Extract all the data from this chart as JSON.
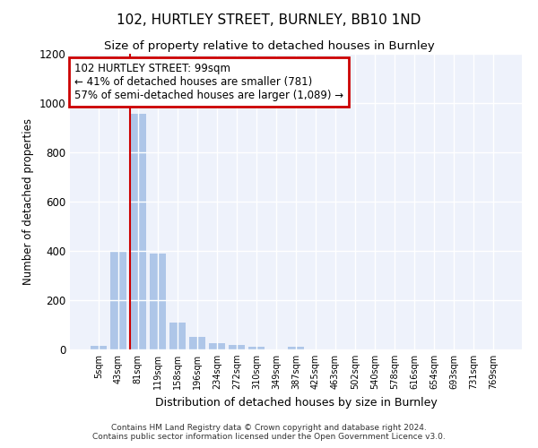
{
  "title": "102, HURTLEY STREET, BURNLEY, BB10 1ND",
  "subtitle": "Size of property relative to detached houses in Burnley",
  "xlabel": "Distribution of detached houses by size in Burnley",
  "ylabel": "Number of detached properties",
  "footer_line1": "Contains HM Land Registry data © Crown copyright and database right 2024.",
  "footer_line2": "Contains public sector information licensed under the Open Government Licence v3.0.",
  "annotation_title": "102 HURTLEY STREET: 99sqm",
  "annotation_line1": "← 41% of detached houses are smaller (781)",
  "annotation_line2": "57% of semi-detached houses are larger (1,089) →",
  "bar_color": "#aec6e8",
  "highlight_line_color": "#cc0000",
  "annotation_box_color": "#cc0000",
  "background_color": "#ffffff",
  "plot_background_color": "#eef2fb",
  "grid_color": "#ffffff",
  "categories": [
    "5sqm",
    "43sqm",
    "81sqm",
    "119sqm",
    "158sqm",
    "196sqm",
    "234sqm",
    "272sqm",
    "310sqm",
    "349sqm",
    "387sqm",
    "425sqm",
    "463sqm",
    "502sqm",
    "540sqm",
    "578sqm",
    "616sqm",
    "654sqm",
    "693sqm",
    "731sqm",
    "769sqm"
  ],
  "values": [
    15,
    395,
    955,
    390,
    110,
    52,
    27,
    18,
    12,
    0,
    10,
    0,
    0,
    0,
    0,
    0,
    0,
    0,
    0,
    0,
    0
  ],
  "highlight_bar_index": 2,
  "ylim": [
    0,
    1200
  ],
  "yticks": [
    0,
    200,
    400,
    600,
    800,
    1000,
    1200
  ]
}
